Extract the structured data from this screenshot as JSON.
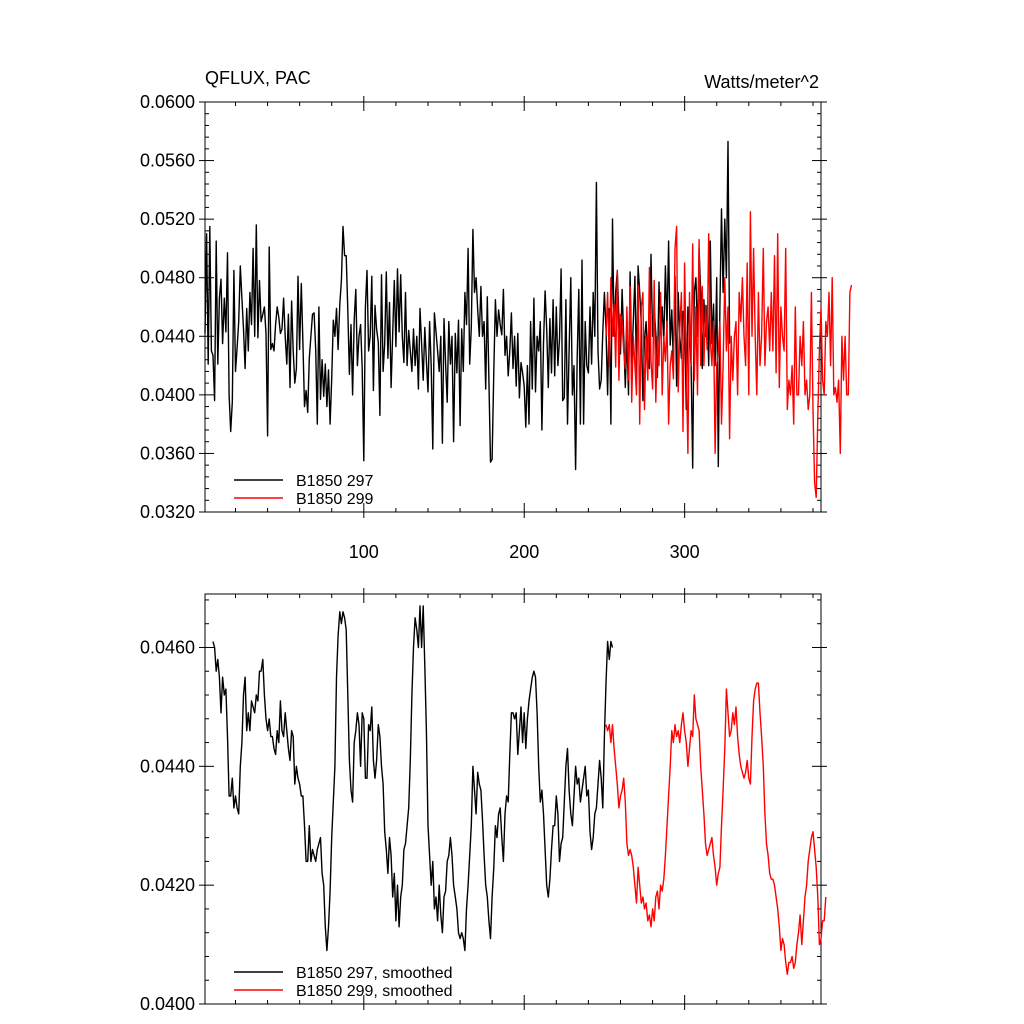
{
  "chart_data": [
    {
      "type": "line",
      "title": "QFLUX, PAC",
      "units": "Watts/meter^2",
      "xlim": [
        1,
        385
      ],
      "ylim": [
        0.032,
        0.06
      ],
      "x_ticks": [
        100,
        200,
        300
      ],
      "y_ticks": [
        "0.0320",
        "0.0360",
        "0.0400",
        "0.0440",
        "0.0480",
        "0.0520",
        "0.0560",
        "0.0600"
      ],
      "grid": false,
      "legend_position": "bottom-left",
      "series": [
        {
          "name": "B1850 297",
          "color": "#000000",
          "x_start": 1,
          "values": [
            0.0442,
            0.051,
            0.0421,
            0.0515,
            0.043,
            0.0427,
            0.0396,
            0.0505,
            0.0421,
            0.0466,
            0.0479,
            0.0435,
            0.0466,
            0.0443,
            0.0497,
            0.04,
            0.0375,
            0.0395,
            0.0485,
            0.0416,
            0.0432,
            0.045,
            0.0488,
            0.0466,
            0.0445,
            0.0418,
            0.0459,
            0.043,
            0.047,
            0.0448,
            0.05,
            0.044,
            0.0516,
            0.0439,
            0.0478,
            0.045,
            0.0455,
            0.046,
            0.0442,
            0.0372,
            0.0501,
            0.0431,
            0.0435,
            0.043,
            0.0448,
            0.046,
            0.0453,
            0.0442,
            0.0445,
            0.0466,
            0.044,
            0.0421,
            0.0455,
            0.0405,
            0.0464,
            0.043,
            0.0408,
            0.0418,
            0.0481,
            0.0431,
            0.0476,
            0.0436,
            0.0392,
            0.0403,
            0.0388,
            0.0425,
            0.044,
            0.0455,
            0.0456,
            0.0431,
            0.038,
            0.046,
            0.0397,
            0.0424,
            0.0399,
            0.0421,
            0.0392,
            0.0417,
            0.038,
            0.0411,
            0.0451,
            0.044,
            0.0459,
            0.0431,
            0.0462,
            0.0478,
            0.0515,
            0.0495,
            0.0495,
            0.0458,
            0.0414,
            0.0448,
            0.04,
            0.0451,
            0.0472,
            0.042,
            0.044,
            0.0448,
            0.0418,
            0.0355,
            0.046,
            0.0485,
            0.043,
            0.044,
            0.0481,
            0.0403,
            0.0461,
            0.0445,
            0.0436,
            0.0386,
            0.0482,
            0.0416,
            0.0435,
            0.0484,
            0.0425,
            0.0463,
            0.0405,
            0.0442,
            0.0478,
            0.0433,
            0.0486,
            0.0443,
            0.0482,
            0.044,
            0.0422,
            0.047,
            0.042,
            0.0444,
            0.043,
            0.0416,
            0.0445,
            0.042,
            0.044,
            0.0404,
            0.0459,
            0.0435,
            0.041,
            0.0446,
            0.0423,
            0.0402,
            0.045,
            0.042,
            0.0363,
            0.0456,
            0.0443,
            0.043,
            0.0416,
            0.044,
            0.0367,
            0.0452,
            0.0421,
            0.0395,
            0.045,
            0.0421,
            0.044,
            0.0368,
            0.0442,
            0.0415,
            0.0451,
            0.0379,
            0.0445,
            0.0416,
            0.047,
            0.0448,
            0.05,
            0.0421,
            0.0446,
            0.0513,
            0.047,
            0.048,
            0.0458,
            0.044,
            0.0474,
            0.044,
            0.045,
            0.0404,
            0.0467,
            0.041,
            0.0354,
            0.0356,
            0.0416,
            0.0465,
            0.044,
            0.0458,
            0.0448,
            0.0441,
            0.0472,
            0.0427,
            0.044,
            0.0413,
            0.043,
            0.0456,
            0.0418,
            0.044,
            0.0406,
            0.0442,
            0.0398,
            0.0422,
            0.0415,
            0.0406,
            0.0378,
            0.042,
            0.038,
            0.045,
            0.0404,
            0.0466,
            0.0402,
            0.044,
            0.043,
            0.045,
            0.0376,
            0.0435,
            0.0471,
            0.0445,
            0.0405,
            0.0452,
            0.0415,
            0.0465,
            0.0413,
            0.046,
            0.042,
            0.0438,
            0.0486,
            0.0396,
            0.0398,
            0.0465,
            0.038,
            0.043,
            0.048,
            0.04,
            0.042,
            0.0349,
            0.0426,
            0.0472,
            0.038,
            0.0492,
            0.038,
            0.045,
            0.042,
            0.0415,
            0.046,
            0.0421,
            0.047,
            0.044,
            0.0545,
            0.043,
            0.0404,
            0.041,
            0.0443,
            0.047,
            0.0445,
            0.04,
            0.0459,
            0.038,
            0.052,
            0.044,
            0.047,
            0.0485,
            0.0452,
            0.0428,
            0.0472,
            0.044,
            0.0405,
            0.044,
            0.04,
            0.0484,
            0.042,
            0.045,
            0.0481,
            0.0415,
            0.0488,
            0.047,
            0.0448,
            0.0396,
            0.0438,
            0.045,
            0.0425,
            0.0418,
            0.0496,
            0.044,
            0.046,
            0.0442,
            0.0412,
            0.0477,
            0.0441,
            0.046,
            0.0436,
            0.0488,
            0.0446,
            0.0505,
            0.0434,
            0.0458,
            0.0421,
            0.0481,
            0.0406,
            0.047,
            0.044,
            0.0425,
            0.0457,
            0.0455,
            0.039,
            0.046,
            0.0445,
            0.042,
            0.035,
            0.047,
            0.048,
            0.044,
            0.05,
            0.047,
            0.0418,
            0.0465,
            0.044,
            0.0461,
            0.042,
            0.0505,
            0.0435,
            0.0462,
            0.042,
            0.048,
            0.0351,
            0.046,
            0.0527,
            0.047,
            0.052,
            0.048,
            0.0573,
            0.0435
          ]
        },
        {
          "name": "B1850 299",
          "color": "#ff0000",
          "x_start": 251,
          "values": [
            0.044,
            0.047,
            0.042,
            0.048,
            0.044,
            0.0462,
            0.0419,
            0.0485,
            0.041,
            0.0455,
            0.045,
            0.043,
            0.0418,
            0.046,
            0.041,
            0.0474,
            0.0395,
            0.044,
            0.042,
            0.04,
            0.0475,
            0.038,
            0.046,
            0.047,
            0.039,
            0.044,
            0.041,
            0.0487,
            0.0423,
            0.0404,
            0.0478,
            0.0395,
            0.044,
            0.042,
            0.047,
            0.04,
            0.044,
            0.0423,
            0.045,
            0.038,
            0.042,
            0.043,
            0.0411,
            0.05,
            0.0515,
            0.0402,
            0.0445,
            0.047,
            0.0375,
            0.049,
            0.042,
            0.036,
            0.047,
            0.042,
            0.0503,
            0.041,
            0.046,
            0.04,
            0.0506,
            0.042,
            0.0474,
            0.042,
            0.0461,
            0.0431,
            0.051,
            0.0438,
            0.042,
            0.045,
            0.036,
            0.042,
            0.043,
            0.045,
            0.038,
            0.042,
            0.048,
            0.043,
            0.046,
            0.037,
            0.044,
            0.041,
            0.044,
            0.045,
            0.04,
            0.047,
            0.045,
            0.048,
            0.044,
            0.042,
            0.049,
            0.04,
            0.0525,
            0.044,
            0.05,
            0.044,
            0.04,
            0.047,
            0.042,
            0.044,
            0.05,
            0.042,
            0.045,
            0.046,
            0.043,
            0.047,
            0.043,
            0.0495,
            0.0415,
            0.051,
            0.0405,
            0.046,
            0.044,
            0.043,
            0.05,
            0.039,
            0.041,
            0.04,
            0.042,
            0.038,
            0.046,
            0.04,
            0.04,
            0.044,
            0.042,
            0.045,
            0.04,
            0.041,
            0.039,
            0.04,
            0.047,
            0.039,
            0.034,
            0.033,
            0.0385,
            0.043,
            0.046,
            0.041,
            0.04,
            0.045,
            0.044,
            0.047,
            0.042,
            0.048,
            0.04,
            0.0405,
            0.0395,
            0.041,
            0.036,
            0.044,
            0.041,
            0.044,
            0.04,
            0.04,
            0.047,
            0.0475
          ]
        }
      ]
    },
    {
      "type": "line",
      "xlim": [
        1,
        385
      ],
      "ylim": [
        0.04,
        0.0469
      ],
      "y_ticks": [
        "0.0400",
        "0.0420",
        "0.0440",
        "0.0460"
      ],
      "grid": false,
      "legend_position": "bottom-left",
      "series": [
        {
          "name": "B1850 297, smoothed",
          "color": "#000000",
          "x_start": 6,
          "values": [
            0.0461,
            0.046,
            0.0456,
            0.0458,
            0.0455,
            0.0449,
            0.0455,
            0.0452,
            0.0453,
            0.0445,
            0.0435,
            0.0435,
            0.0438,
            0.0433,
            0.0435,
            0.0433,
            0.0432,
            0.044,
            0.0444,
            0.0452,
            0.0455,
            0.0446,
            0.0449,
            0.0446,
            0.0451,
            0.045,
            0.0449,
            0.0452,
            0.0451,
            0.0456,
            0.0456,
            0.0458,
            0.0452,
            0.0448,
            0.0446,
            0.0448,
            0.0445,
            0.0445,
            0.0443,
            0.0442,
            0.0446,
            0.0444,
            0.0451,
            0.0446,
            0.0445,
            0.0449,
            0.0446,
            0.0443,
            0.0441,
            0.0446,
            0.0445,
            0.0437,
            0.044,
            0.0438,
            0.0437,
            0.0435,
            0.0435,
            0.043,
            0.0424,
            0.0424,
            0.043,
            0.0424,
            0.0426,
            0.0425,
            0.0424,
            0.0426,
            0.0427,
            0.0428,
            0.0422,
            0.042,
            0.0413,
            0.0409,
            0.0413,
            0.0419,
            0.0428,
            0.0434,
            0.044,
            0.0455,
            0.0462,
            0.0466,
            0.0464,
            0.0466,
            0.0465,
            0.0463,
            0.0452,
            0.0441,
            0.0436,
            0.0434,
            0.0444,
            0.0446,
            0.0449,
            0.0447,
            0.044,
            0.0449,
            0.0448,
            0.0438,
            0.0438,
            0.0447,
            0.0446,
            0.045,
            0.0441,
            0.0438,
            0.0441,
            0.0447,
            0.0445,
            0.044,
            0.0437,
            0.0429,
            0.0426,
            0.0422,
            0.0428,
            0.0425,
            0.0418,
            0.0422,
            0.0414,
            0.042,
            0.0413,
            0.0418,
            0.042,
            0.0426,
            0.0427,
            0.043,
            0.0433,
            0.0441,
            0.0452,
            0.046,
            0.0465,
            0.0463,
            0.046,
            0.0467,
            0.046,
            0.0467,
            0.0457,
            0.0446,
            0.043,
            0.0425,
            0.042,
            0.0424,
            0.0416,
            0.0418,
            0.0414,
            0.042,
            0.0415,
            0.0412,
            0.0418,
            0.0419,
            0.0424,
            0.0425,
            0.0428,
            0.0425,
            0.042,
            0.0418,
            0.0416,
            0.0412,
            0.0411,
            0.0412,
            0.0411,
            0.0409,
            0.0416,
            0.042,
            0.0425,
            0.043,
            0.044,
            0.0436,
            0.0432,
            0.0439,
            0.0437,
            0.0436,
            0.0431,
            0.0425,
            0.042,
            0.0418,
            0.0414,
            0.0411,
            0.0418,
            0.0423,
            0.043,
            0.0428,
            0.0432,
            0.0433,
            0.0428,
            0.0424,
            0.0432,
            0.0435,
            0.0434,
            0.0442,
            0.0449,
            0.0449,
            0.0448,
            0.0449,
            0.0442,
            0.0446,
            0.045,
            0.0444,
            0.0449,
            0.0443,
            0.0448,
            0.0451,
            0.0453,
            0.0455,
            0.0456,
            0.0455,
            0.0449,
            0.044,
            0.0434,
            0.0436,
            0.0432,
            0.0426,
            0.042,
            0.0418,
            0.0421,
            0.0426,
            0.043,
            0.043,
            0.0435,
            0.0432,
            0.0424,
            0.0427,
            0.0428,
            0.0434,
            0.044,
            0.0443,
            0.0436,
            0.0432,
            0.043,
            0.0435,
            0.044,
            0.0437,
            0.0438,
            0.0434,
            0.0436,
            0.0438,
            0.044,
            0.0435,
            0.0436,
            0.0429,
            0.0426,
            0.0428,
            0.0432,
            0.0433,
            0.0437,
            0.0441,
            0.0438,
            0.0433,
            0.0445,
            0.0454,
            0.0461,
            0.0458,
            0.0461,
            0.046
          ]
        },
        {
          "name": "B1850 299, smoothed",
          "color": "#ff0000",
          "x_start": 251,
          "values": [
            0.0447,
            0.0446,
            0.0447,
            0.0444,
            0.0447,
            0.0443,
            0.044,
            0.0437,
            0.0433,
            0.0435,
            0.0436,
            0.0438,
            0.0434,
            0.0427,
            0.0425,
            0.0426,
            0.0425,
            0.0423,
            0.042,
            0.0417,
            0.0423,
            0.042,
            0.0417,
            0.0418,
            0.0416,
            0.0417,
            0.0414,
            0.0415,
            0.0413,
            0.0416,
            0.0414,
            0.0418,
            0.0419,
            0.0416,
            0.042,
            0.0419,
            0.0421,
            0.0425,
            0.043,
            0.0435,
            0.044,
            0.0446,
            0.0444,
            0.0447,
            0.0445,
            0.0446,
            0.0444,
            0.0447,
            0.0449,
            0.0446,
            0.0444,
            0.044,
            0.0443,
            0.0446,
            0.0445,
            0.0452,
            0.0448,
            0.0447,
            0.0446,
            0.044,
            0.0436,
            0.0432,
            0.0427,
            0.0425,
            0.0426,
            0.0427,
            0.0428,
            0.0425,
            0.0423,
            0.042,
            0.0422,
            0.0423,
            0.043,
            0.0436,
            0.0443,
            0.0453,
            0.0449,
            0.0445,
            0.0446,
            0.0449,
            0.0447,
            0.045,
            0.0445,
            0.0442,
            0.044,
            0.0439,
            0.0438,
            0.0439,
            0.0441,
            0.0438,
            0.0437,
            0.0445,
            0.0451,
            0.0453,
            0.0454,
            0.0454,
            0.0449,
            0.0445,
            0.044,
            0.0432,
            0.0427,
            0.0425,
            0.0422,
            0.0421,
            0.0421,
            0.042,
            0.0418,
            0.0416,
            0.0413,
            0.0409,
            0.0411,
            0.041,
            0.0407,
            0.0405,
            0.0407,
            0.0407,
            0.0408,
            0.0406,
            0.0407,
            0.041,
            0.0412,
            0.0415,
            0.041,
            0.0414,
            0.0418,
            0.042,
            0.0424,
            0.0426,
            0.0428,
            0.0429,
            0.0426,
            0.0423,
            0.0418,
            0.041,
            0.0411,
            0.0414,
            0.0414,
            0.0418
          ]
        }
      ]
    }
  ],
  "axis_colors": {
    "frame": "#000000",
    "background": "#ffffff"
  }
}
